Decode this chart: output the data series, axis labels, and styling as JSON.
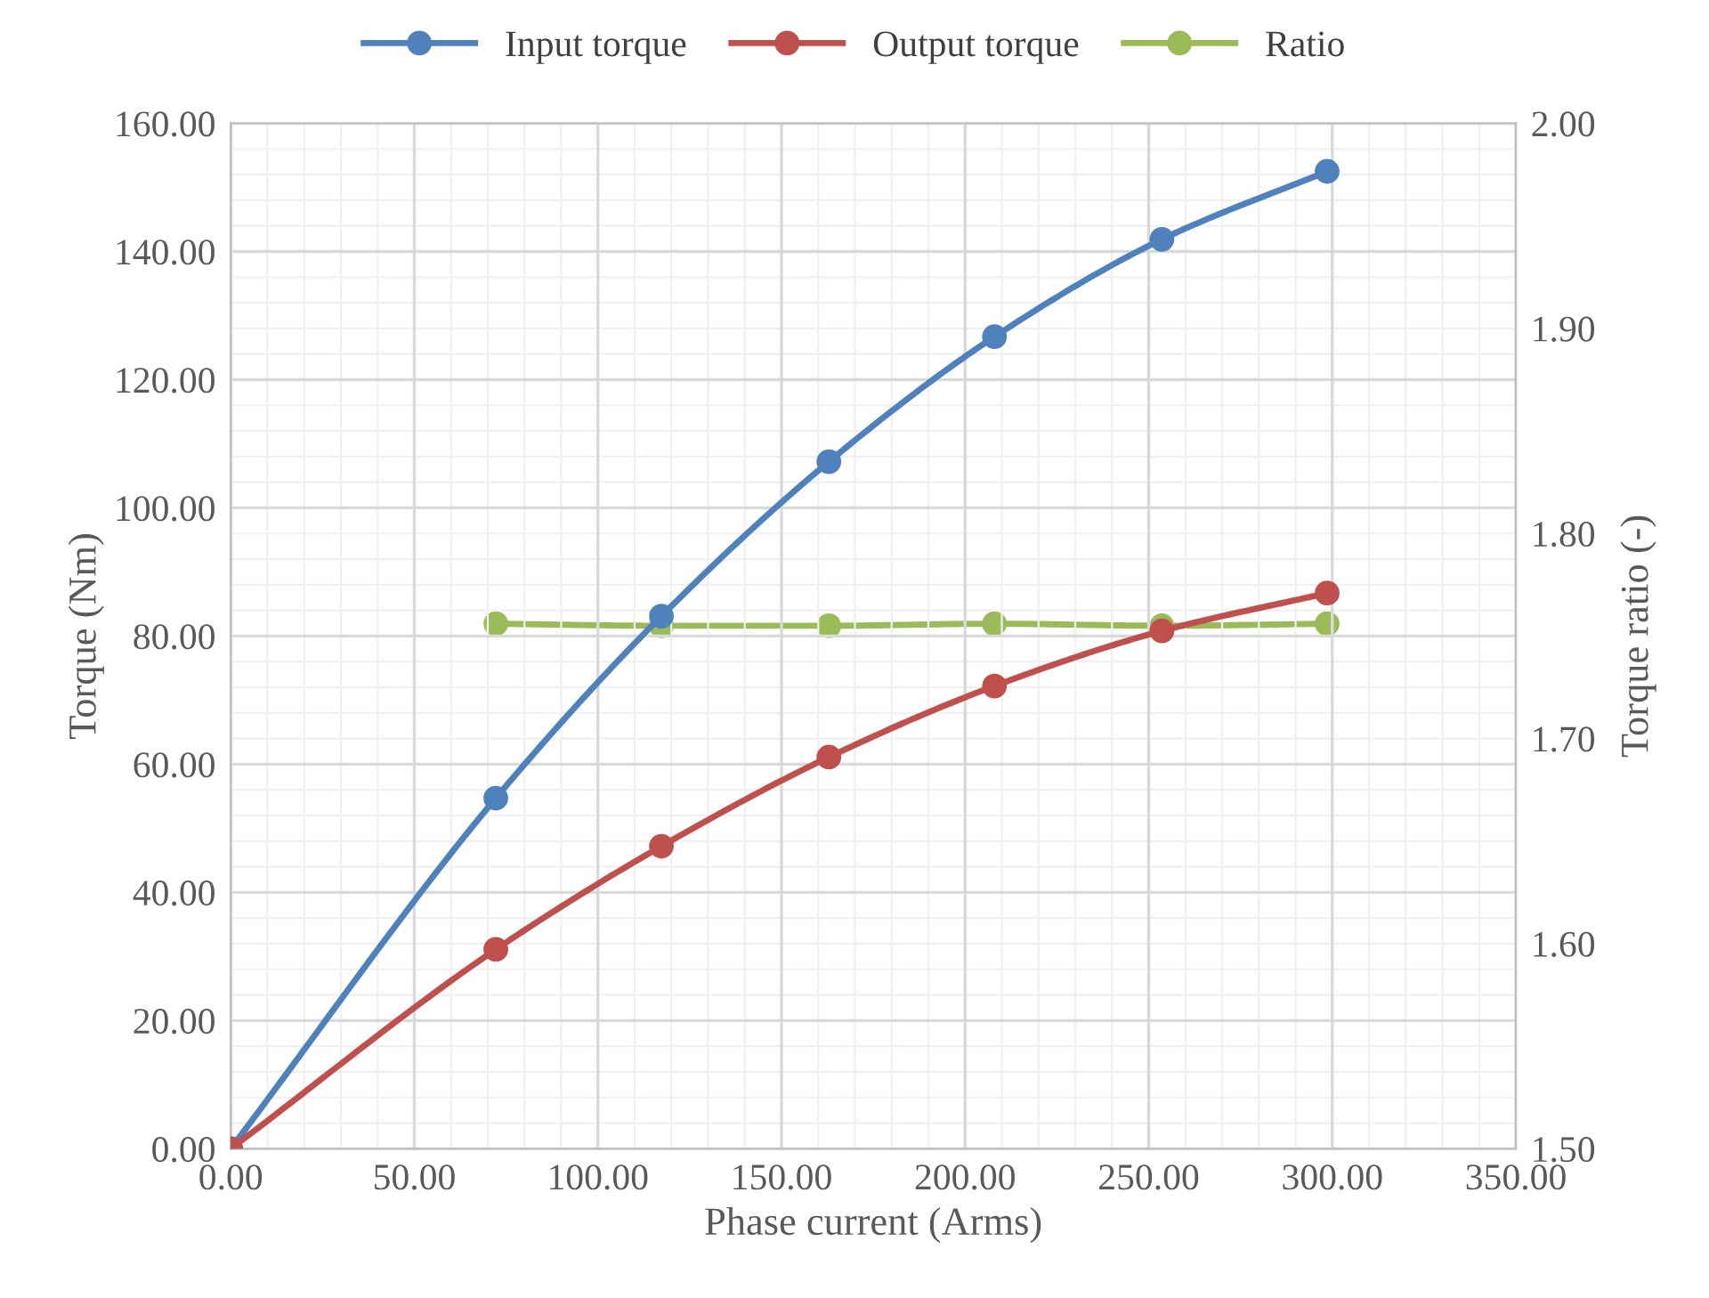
{
  "chart_data": {
    "type": "line",
    "xlabel": "Phase current (Arms)",
    "ylabel": "Torque (Nm)",
    "y2label": "Torque ratio (-)",
    "x": [
      0,
      72.2,
      117.3,
      162.9,
      208,
      253.6,
      298.6
    ],
    "series": [
      {
        "name": "Input torque",
        "color": "#4f81bd",
        "values": [
          0,
          54.7,
          83.1,
          107.2,
          126.7,
          141.9,
          152.5
        ]
      },
      {
        "name": "Output torque",
        "color": "#c0504d",
        "values": [
          0,
          31.1,
          47.2,
          61.1,
          72.2,
          80.8,
          86.7
        ]
      },
      {
        "name": "Ratio",
        "color": "#9bbb59",
        "axis": "y2",
        "values": [
          null,
          1.756,
          1.755,
          1.755,
          1.756,
          1.755,
          1.756
        ]
      }
    ],
    "xlim": [
      0,
      350
    ],
    "ylim": [
      0,
      160
    ],
    "y2lim": [
      1.5,
      2.0
    ],
    "xticks": [
      {
        "value": 0,
        "label": "0.00"
      },
      {
        "value": 50,
        "label": "50.00"
      },
      {
        "value": 100,
        "label": "100.00"
      },
      {
        "value": 150,
        "label": "150.00"
      },
      {
        "value": 200,
        "label": "200.00"
      },
      {
        "value": 250,
        "label": "250.00"
      },
      {
        "value": 300,
        "label": "300.00"
      },
      {
        "value": 350,
        "label": "350.00"
      }
    ],
    "yticks": [
      {
        "value": 0,
        "label": "0.00"
      },
      {
        "value": 20,
        "label": "20.00"
      },
      {
        "value": 40,
        "label": "40.00"
      },
      {
        "value": 60,
        "label": "60.00"
      },
      {
        "value": 80,
        "label": "80.00"
      },
      {
        "value": 100,
        "label": "100.00"
      },
      {
        "value": 120,
        "label": "120.00"
      },
      {
        "value": 140,
        "label": "140.00"
      },
      {
        "value": 160,
        "label": "160.00"
      }
    ],
    "y2ticks": [
      {
        "value": 1.5,
        "label": "1.50"
      },
      {
        "value": 1.6,
        "label": "1.60"
      },
      {
        "value": 1.7,
        "label": "1.70"
      },
      {
        "value": 1.8,
        "label": "1.80"
      },
      {
        "value": 1.9,
        "label": "1.90"
      },
      {
        "value": 2.0,
        "label": "2.00"
      }
    ],
    "grid": true,
    "legend": "top",
    "marker": "circle",
    "line_style": "solid"
  }
}
